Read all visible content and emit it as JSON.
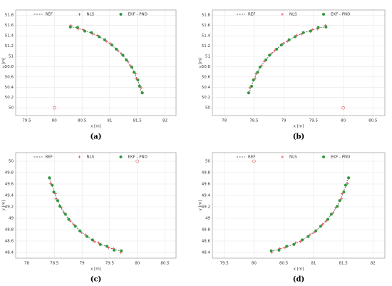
{
  "chart_data": [
    {
      "type": "scatter",
      "caption": "(a)",
      "x_label": "x [m]",
      "y_label": "y [m]",
      "legend": "top",
      "grid": true,
      "xlim": [
        79.3,
        82.2
      ],
      "xticks": [
        79.5,
        80,
        80.5,
        81,
        81.5,
        82
      ],
      "ylim": [
        49.85,
        51.9
      ],
      "yticks": [
        50,
        50.2,
        50.4,
        50.6,
        50.8,
        51,
        51.2,
        51.4,
        51.6,
        51.8
      ],
      "anchor": {
        "x": 80,
        "y": 50
      },
      "series": [
        {
          "name": "REF",
          "color": "#333333",
          "style": "line",
          "x": [
            80.28,
            80.41,
            80.55,
            80.68,
            80.8,
            80.92,
            81.03,
            81.13,
            81.23,
            81.31,
            81.39,
            81.45,
            81.5,
            81.55,
            81.58
          ],
          "values": [
            51.58,
            51.55,
            51.5,
            51.45,
            51.39,
            51.31,
            51.23,
            51.13,
            51.03,
            50.92,
            50.8,
            50.68,
            50.55,
            50.41,
            50.28
          ]
        },
        {
          "name": "NLS",
          "color": "#e8505b",
          "style": "plus",
          "x": [
            80.3,
            80.43,
            80.52,
            80.7,
            80.78,
            80.94,
            81.01,
            81.15,
            81.21,
            81.33,
            81.37,
            81.47,
            81.48,
            81.57,
            81.59
          ],
          "values": [
            51.6,
            51.53,
            51.52,
            51.43,
            51.41,
            51.29,
            51.25,
            51.11,
            51.05,
            50.9,
            50.82,
            50.66,
            50.57,
            50.39,
            50.3
          ]
        },
        {
          "name": "EKF - PND",
          "color": "#2e9a3a",
          "style": "dot",
          "x": [
            80.29,
            80.42,
            80.55,
            80.67,
            80.81,
            80.91,
            81.04,
            81.12,
            81.24,
            81.3,
            81.4,
            81.44,
            81.51,
            81.54,
            81.59
          ],
          "values": [
            51.57,
            51.56,
            51.49,
            51.46,
            51.38,
            51.32,
            51.22,
            51.14,
            51.02,
            50.93,
            50.79,
            50.69,
            50.54,
            50.42,
            50.29
          ]
        }
      ]
    },
    {
      "type": "scatter",
      "caption": "(b)",
      "x_label": "x [m]",
      "y_label": "y [m]",
      "legend": "top",
      "grid": true,
      "xlim": [
        77.8,
        80.7
      ],
      "xticks": [
        78,
        78.5,
        79,
        79.5,
        80,
        80.5
      ],
      "ylim": [
        49.85,
        51.9
      ],
      "yticks": [
        50,
        50.2,
        50.4,
        50.6,
        50.8,
        51,
        51.2,
        51.4,
        51.6,
        51.8
      ],
      "anchor": {
        "x": 80,
        "y": 50
      },
      "series": [
        {
          "name": "REF",
          "color": "#333333",
          "style": "line",
          "x": [
            79.72,
            79.59,
            79.45,
            79.32,
            79.2,
            79.08,
            78.97,
            78.87,
            78.77,
            78.69,
            78.61,
            78.55,
            78.5,
            78.45,
            78.42
          ],
          "values": [
            51.58,
            51.55,
            51.5,
            51.45,
            51.39,
            51.31,
            51.23,
            51.13,
            51.03,
            50.92,
            50.8,
            50.68,
            50.55,
            50.41,
            50.28
          ]
        },
        {
          "name": "NLS",
          "color": "#e8505b",
          "style": "plus",
          "x": [
            79.7,
            79.57,
            79.48,
            79.3,
            79.22,
            79.06,
            78.99,
            78.85,
            78.79,
            78.67,
            78.63,
            78.53,
            78.52,
            78.43,
            78.41
          ],
          "values": [
            51.6,
            51.53,
            51.52,
            51.43,
            51.41,
            51.29,
            51.25,
            51.11,
            51.05,
            50.9,
            50.82,
            50.66,
            50.57,
            50.39,
            50.3
          ]
        },
        {
          "name": "EKF - PND",
          "color": "#2e9a3a",
          "style": "dot",
          "x": [
            79.71,
            79.58,
            79.45,
            79.33,
            79.19,
            79.09,
            78.96,
            78.88,
            78.76,
            78.7,
            78.6,
            78.56,
            78.49,
            78.46,
            78.41
          ],
          "values": [
            51.57,
            51.56,
            51.49,
            51.46,
            51.38,
            51.32,
            51.22,
            51.14,
            51.02,
            50.93,
            50.79,
            50.69,
            50.54,
            50.42,
            50.29
          ]
        }
      ]
    },
    {
      "type": "scatter",
      "caption": "(c)",
      "x_label": "x [m]",
      "y_label": "y [m]",
      "legend": "top",
      "grid": true,
      "xlim": [
        77.8,
        80.7
      ],
      "xticks": [
        78,
        78.5,
        79,
        79.5,
        80,
        80.5
      ],
      "ylim": [
        48.3,
        50.15
      ],
      "yticks": [
        48.4,
        48.6,
        48.8,
        49,
        49.2,
        49.4,
        49.6,
        49.8,
        50
      ],
      "anchor": {
        "x": 80,
        "y": 50
      },
      "series": [
        {
          "name": "REF",
          "color": "#333333",
          "style": "line",
          "x": [
            79.72,
            79.59,
            79.45,
            79.32,
            79.2,
            79.08,
            78.97,
            78.87,
            78.77,
            78.69,
            78.61,
            78.55,
            78.5,
            78.45,
            78.42
          ],
          "values": [
            48.42,
            48.45,
            48.5,
            48.55,
            48.61,
            48.69,
            48.77,
            48.87,
            48.97,
            49.08,
            49.2,
            49.32,
            49.45,
            49.59,
            49.72
          ]
        },
        {
          "name": "NLS",
          "color": "#e8505b",
          "style": "plus",
          "x": [
            79.7,
            79.57,
            79.48,
            79.3,
            79.22,
            79.06,
            78.99,
            78.85,
            78.79,
            78.67,
            78.63,
            78.53,
            78.52,
            78.43,
            78.41
          ],
          "values": [
            48.4,
            48.47,
            48.48,
            48.57,
            48.59,
            48.71,
            48.75,
            48.89,
            48.95,
            49.1,
            49.18,
            49.34,
            49.43,
            49.61,
            49.7
          ]
        },
        {
          "name": "EKF - PND",
          "color": "#2e9a3a",
          "style": "dot",
          "x": [
            79.71,
            79.58,
            79.45,
            79.33,
            79.19,
            79.09,
            78.96,
            78.88,
            78.76,
            78.7,
            78.6,
            78.56,
            78.49,
            78.46,
            78.41
          ],
          "values": [
            48.43,
            48.44,
            48.51,
            48.54,
            48.62,
            48.68,
            48.78,
            48.86,
            48.98,
            49.07,
            49.21,
            49.31,
            49.46,
            49.58,
            49.71
          ]
        }
      ]
    },
    {
      "type": "scatter",
      "caption": "(d)",
      "x_label": "x [m]",
      "y_label": "y [m]",
      "legend": "top",
      "grid": true,
      "xlim": [
        79.3,
        82.2
      ],
      "xticks": [
        79.5,
        80,
        80.5,
        81,
        81.5,
        82
      ],
      "ylim": [
        48.3,
        50.15
      ],
      "yticks": [
        48.4,
        48.6,
        48.8,
        49,
        49.2,
        49.4,
        49.6,
        49.8,
        50
      ],
      "anchor": {
        "x": 80,
        "y": 50
      },
      "series": [
        {
          "name": "REF",
          "color": "#333333",
          "style": "line",
          "x": [
            80.28,
            80.41,
            80.55,
            80.68,
            80.8,
            80.92,
            81.03,
            81.13,
            81.23,
            81.31,
            81.39,
            81.45,
            81.5,
            81.55,
            81.58
          ],
          "values": [
            48.42,
            48.45,
            48.5,
            48.55,
            48.61,
            48.69,
            48.77,
            48.87,
            48.97,
            49.08,
            49.2,
            49.32,
            49.45,
            49.59,
            49.72
          ]
        },
        {
          "name": "NLS",
          "color": "#e8505b",
          "style": "plus",
          "x": [
            80.3,
            80.43,
            80.52,
            80.7,
            80.78,
            80.94,
            81.01,
            81.15,
            81.21,
            81.33,
            81.37,
            81.47,
            81.48,
            81.57,
            81.59
          ],
          "values": [
            48.4,
            48.47,
            48.48,
            48.57,
            48.59,
            48.71,
            48.75,
            48.89,
            48.95,
            49.1,
            49.18,
            49.34,
            49.43,
            49.61,
            49.7
          ]
        },
        {
          "name": "EKF - PND",
          "color": "#2e9a3a",
          "style": "dot",
          "x": [
            80.29,
            80.42,
            80.55,
            80.67,
            80.81,
            80.91,
            81.04,
            81.12,
            81.24,
            81.3,
            81.4,
            81.44,
            81.51,
            81.54,
            81.59
          ],
          "values": [
            48.43,
            48.44,
            48.51,
            48.54,
            48.62,
            48.68,
            48.78,
            48.86,
            48.98,
            49.07,
            49.21,
            49.31,
            49.46,
            49.58,
            49.71
          ]
        }
      ]
    }
  ]
}
